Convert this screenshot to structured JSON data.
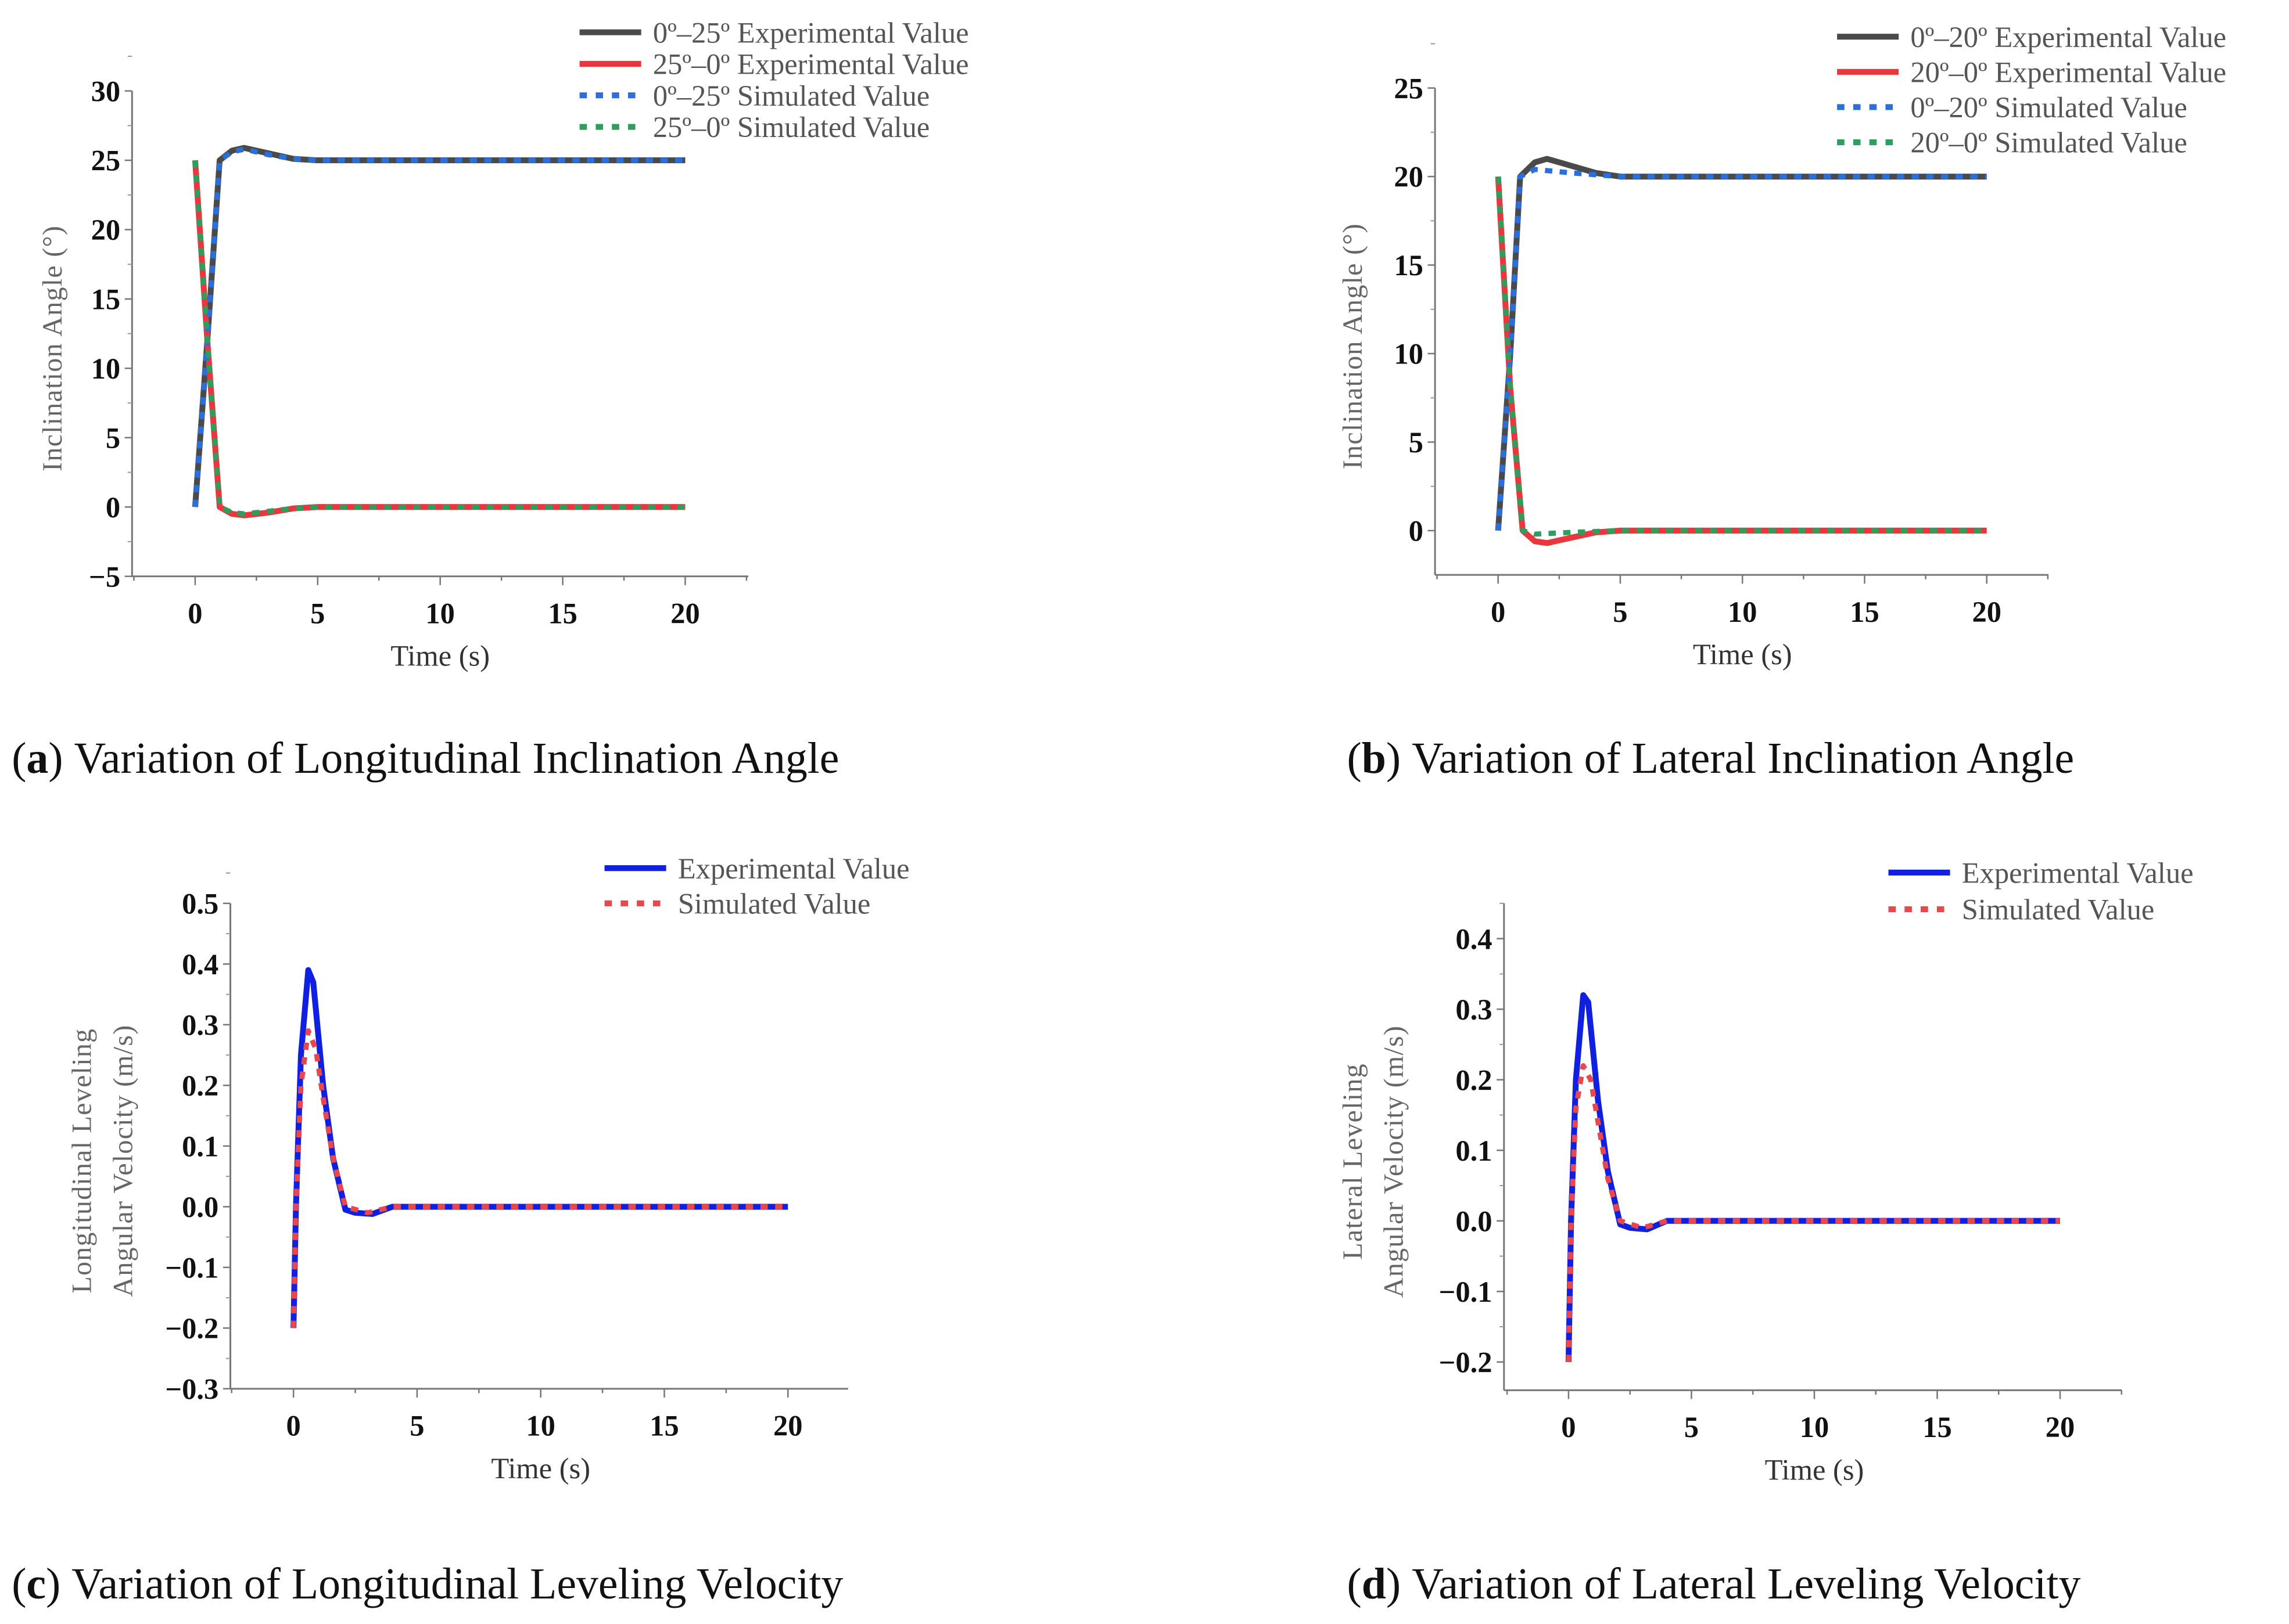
{
  "chart_data": [
    {
      "id": "a",
      "type": "line",
      "xlabel": "Time (s)",
      "ylabel": "Inclination  Angle  (°)",
      "xlim": [
        -2.6,
        22.6
      ],
      "ylim": [
        -5,
        30
      ],
      "xticks": [
        0,
        5,
        10,
        15,
        20
      ],
      "yticks": [
        -5,
        0,
        5,
        10,
        15,
        20,
        25,
        30
      ],
      "ytick_labels": [
        "−5",
        "0",
        "5",
        "10",
        "15",
        "20",
        "25",
        "30"
      ],
      "legend_position": "top-right",
      "caption": {
        "label": "a",
        "text": "Variation of Longitudinal Inclination Angle"
      },
      "series": [
        {
          "name": "0º–25º Experimental Value",
          "color": "#4a4a4a",
          "style": "solid",
          "points": [
            [
              0,
              0
            ],
            [
              0.5,
              12
            ],
            [
              1,
              25
            ],
            [
              1.5,
              25.7
            ],
            [
              2,
              25.9
            ],
            [
              3,
              25.5
            ],
            [
              4,
              25.1
            ],
            [
              5,
              25
            ],
            [
              20,
              25
            ]
          ]
        },
        {
          "name": "25º–0º Experimental Value",
          "color": "#e8383d",
          "style": "solid",
          "points": [
            [
              0,
              25
            ],
            [
              0.5,
              12
            ],
            [
              1,
              0
            ],
            [
              1.5,
              -0.5
            ],
            [
              2,
              -0.6
            ],
            [
              3,
              -0.4
            ],
            [
              4,
              -0.1
            ],
            [
              5,
              0
            ],
            [
              20,
              0
            ]
          ]
        },
        {
          "name": "0º–25º Simulated Value",
          "color": "#2a6fdb",
          "style": "dotted",
          "points": [
            [
              0,
              0
            ],
            [
              0.5,
              12
            ],
            [
              1,
              25
            ],
            [
              1.5,
              25.6
            ],
            [
              2,
              25.8
            ],
            [
              3,
              25.4
            ],
            [
              4,
              25.1
            ],
            [
              5,
              25
            ],
            [
              20,
              25
            ]
          ]
        },
        {
          "name": "25º–0º Simulated Value",
          "color": "#2e9e5e",
          "style": "dotted",
          "points": [
            [
              0,
              25
            ],
            [
              0.5,
              12
            ],
            [
              1,
              0
            ],
            [
              1.5,
              -0.4
            ],
            [
              2,
              -0.5
            ],
            [
              3,
              -0.3
            ],
            [
              4,
              -0.1
            ],
            [
              5,
              0
            ],
            [
              20,
              0
            ]
          ]
        }
      ]
    },
    {
      "id": "b",
      "type": "line",
      "xlabel": "Time (s)",
      "ylabel": "Inclination  Angle  (°)",
      "xlim": [
        -2.6,
        22.6
      ],
      "ylim": [
        -2.5,
        25
      ],
      "xticks": [
        0,
        5,
        10,
        15,
        20
      ],
      "yticks": [
        0,
        5,
        10,
        15,
        20,
        25
      ],
      "ytick_labels": [
        "0",
        "5",
        "10",
        "15",
        "20",
        "25"
      ],
      "legend_position": "top-right",
      "caption": {
        "label": "b",
        "text": "Variation of Lateral Inclination Angle"
      },
      "series": [
        {
          "name": "0º–20º Experimental Value",
          "color": "#4a4a4a",
          "style": "solid",
          "points": [
            [
              0,
              0
            ],
            [
              0.5,
              10
            ],
            [
              0.9,
              20
            ],
            [
              1.5,
              20.8
            ],
            [
              2,
              21
            ],
            [
              3,
              20.6
            ],
            [
              4,
              20.2
            ],
            [
              5,
              20
            ],
            [
              20,
              20
            ]
          ]
        },
        {
          "name": "20º–0º Experimental Value",
          "color": "#e8383d",
          "style": "solid",
          "points": [
            [
              0,
              20
            ],
            [
              0.5,
              8
            ],
            [
              1,
              0
            ],
            [
              1.5,
              -0.6
            ],
            [
              2,
              -0.7
            ],
            [
              3,
              -0.4
            ],
            [
              4,
              -0.1
            ],
            [
              5,
              0
            ],
            [
              20,
              0
            ]
          ]
        },
        {
          "name": "0º–20º Simulated Value",
          "color": "#2a6fdb",
          "style": "dotted",
          "points": [
            [
              0,
              0
            ],
            [
              0.5,
              10
            ],
            [
              0.9,
              20
            ],
            [
              1.5,
              20.4
            ],
            [
              3,
              20.2
            ],
            [
              5,
              20
            ],
            [
              20,
              20
            ]
          ]
        },
        {
          "name": "20º–0º Simulated Value",
          "color": "#2e9e5e",
          "style": "dotted",
          "points": [
            [
              0,
              20
            ],
            [
              0.5,
              8
            ],
            [
              1,
              0
            ],
            [
              1.5,
              -0.2
            ],
            [
              3,
              -0.1
            ],
            [
              5,
              0
            ],
            [
              20,
              0
            ]
          ]
        }
      ]
    },
    {
      "id": "c",
      "type": "line",
      "xlabel": "Time (s)",
      "ylabel": [
        "Longitudinal Leveling",
        "Angular Velocity (m/s)"
      ],
      "xlim": [
        -2.6,
        22.6
      ],
      "ylim": [
        -0.3,
        0.5
      ],
      "xticks": [
        0,
        5,
        10,
        15,
        20
      ],
      "yticks": [
        -0.3,
        -0.2,
        -0.1,
        0,
        0.1,
        0.2,
        0.3,
        0.4,
        0.5
      ],
      "ytick_labels": [
        "−0.3",
        "−0.2",
        "−0.1",
        "0.0",
        "0.1",
        "0.2",
        "0.3",
        "0.4",
        "0.5"
      ],
      "legend_position": "top-right",
      "caption": {
        "label": "c",
        "text": "Variation of Longitudinal Leveling Velocity"
      },
      "series": [
        {
          "name": "Experimental Value",
          "color": "#1020e0",
          "style": "solid",
          "points": [
            [
              0,
              -0.2
            ],
            [
              0.1,
              0
            ],
            [
              0.3,
              0.25
            ],
            [
              0.6,
              0.39
            ],
            [
              0.8,
              0.37
            ],
            [
              1.2,
              0.2
            ],
            [
              1.6,
              0.08
            ],
            [
              2.1,
              -0.005
            ],
            [
              2.5,
              -0.01
            ],
            [
              3.2,
              -0.012
            ],
            [
              4,
              0
            ],
            [
              7,
              0
            ],
            [
              20,
              0
            ]
          ]
        },
        {
          "name": "Simulated Value",
          "color": "#e8484d",
          "style": "dotted",
          "points": [
            [
              0,
              -0.2
            ],
            [
              0.1,
              0
            ],
            [
              0.3,
              0.2
            ],
            [
              0.6,
              0.29
            ],
            [
              0.9,
              0.26
            ],
            [
              1.2,
              0.18
            ],
            [
              1.6,
              0.08
            ],
            [
              2.1,
              0
            ],
            [
              3,
              -0.01
            ],
            [
              4,
              0
            ],
            [
              20,
              0
            ]
          ]
        }
      ]
    },
    {
      "id": "d",
      "type": "line",
      "xlabel": "Time (s)",
      "ylabel": [
        "Lateral Leveling",
        "Angular Velocity (m/s)"
      ],
      "xlim": [
        -2.6,
        22.6
      ],
      "ylim": [
        -0.24,
        0.45
      ],
      "xticks": [
        0,
        5,
        10,
        15,
        20
      ],
      "yticks": [
        -0.2,
        -0.1,
        0,
        0.1,
        0.2,
        0.3,
        0.4
      ],
      "ytick_labels": [
        "−0.2",
        "−0.1",
        "0.0",
        "0.1",
        "0.2",
        "0.3",
        "0.4"
      ],
      "legend_position": "top-right",
      "caption": {
        "label": "d",
        "text": "Variation of Lateral Leveling Velocity"
      },
      "series": [
        {
          "name": "Experimental Value",
          "color": "#1020e0",
          "style": "solid",
          "points": [
            [
              0,
              -0.2
            ],
            [
              0.1,
              0
            ],
            [
              0.3,
              0.2
            ],
            [
              0.6,
              0.32
            ],
            [
              0.8,
              0.31
            ],
            [
              1.2,
              0.17
            ],
            [
              1.6,
              0.07
            ],
            [
              2.1,
              -0.005
            ],
            [
              2.5,
              -0.01
            ],
            [
              3.2,
              -0.012
            ],
            [
              4,
              0
            ],
            [
              7,
              0
            ],
            [
              20,
              0
            ]
          ]
        },
        {
          "name": "Simulated Value",
          "color": "#e8484d",
          "style": "dotted",
          "points": [
            [
              0,
              -0.2
            ],
            [
              0.1,
              0
            ],
            [
              0.3,
              0.16
            ],
            [
              0.6,
              0.22
            ],
            [
              0.9,
              0.2
            ],
            [
              1.2,
              0.14
            ],
            [
              1.6,
              0.06
            ],
            [
              2.1,
              0
            ],
            [
              3,
              -0.01
            ],
            [
              4,
              0
            ],
            [
              20,
              0
            ]
          ]
        }
      ]
    }
  ]
}
